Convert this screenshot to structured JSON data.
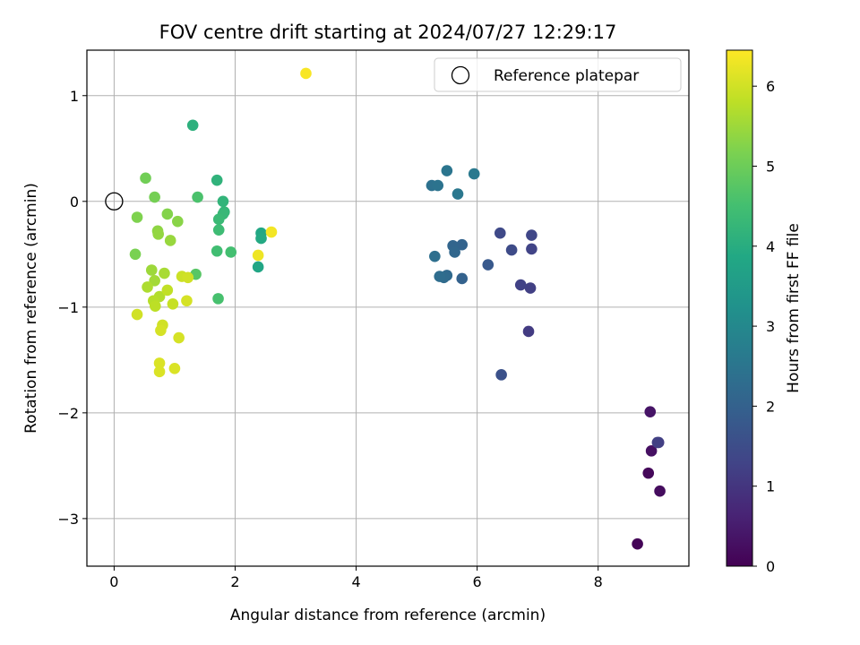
{
  "chart_data": {
    "type": "scatter",
    "title": "FOV centre drift starting at 2024/07/27 12:29:17",
    "xlabel": "Angular distance from reference (arcmin)",
    "ylabel": "Rotation from reference (arcmin)",
    "xlim": [
      -0.45,
      9.5
    ],
    "ylim": [
      -3.45,
      1.43
    ],
    "xticks": [
      0,
      2,
      4,
      6,
      8
    ],
    "yticks": [
      1,
      0,
      -1,
      -2,
      -3
    ],
    "xtick_labels": [
      "0",
      "2",
      "4",
      "6",
      "8"
    ],
    "ytick_labels": [
      "1",
      "0",
      "−1",
      "−2",
      "−3"
    ],
    "grid": true,
    "legend": {
      "placement": "top-right",
      "entries": [
        "Reference platepar"
      ]
    },
    "reference_point": {
      "x": 0,
      "y": 0,
      "marker": "open-circle"
    },
    "colorbar": {
      "label": "Hours from first FF file",
      "range": [
        0,
        6.45
      ],
      "ticks": [
        0,
        1,
        2,
        3,
        4,
        5,
        6
      ],
      "tick_labels": [
        "0",
        "1",
        "2",
        "3",
        "4",
        "5",
        "6"
      ],
      "colormap": "viridis"
    },
    "points": [
      {
        "x": 8.65,
        "y": -3.24,
        "c": 0.05
      },
      {
        "x": 8.83,
        "y": -2.57,
        "c": 0.12
      },
      {
        "x": 9.02,
        "y": -2.74,
        "c": 0.2
      },
      {
        "x": 8.88,
        "y": -2.36,
        "c": 0.28
      },
      {
        "x": 8.86,
        "y": -1.99,
        "c": 0.35
      },
      {
        "x": 9.0,
        "y": -2.28,
        "c": 1.15
      },
      {
        "x": 8.98,
        "y": -2.28,
        "c": 1.2
      },
      {
        "x": 6.85,
        "y": -1.23,
        "c": 1.1
      },
      {
        "x": 6.88,
        "y": -0.82,
        "c": 1.2
      },
      {
        "x": 6.72,
        "y": -0.79,
        "c": 1.25
      },
      {
        "x": 6.9,
        "y": -0.45,
        "c": 1.3
      },
      {
        "x": 6.9,
        "y": -0.32,
        "c": 1.35
      },
      {
        "x": 6.38,
        "y": -0.3,
        "c": 1.4
      },
      {
        "x": 6.57,
        "y": -0.46,
        "c": 1.45
      },
      {
        "x": 6.4,
        "y": -1.64,
        "c": 1.6
      },
      {
        "x": 6.18,
        "y": -0.6,
        "c": 1.8
      },
      {
        "x": 5.75,
        "y": -0.73,
        "c": 2.0
      },
      {
        "x": 5.75,
        "y": -0.41,
        "c": 2.05
      },
      {
        "x": 5.6,
        "y": -0.42,
        "c": 2.1
      },
      {
        "x": 5.63,
        "y": -0.48,
        "c": 2.15
      },
      {
        "x": 5.5,
        "y": -0.7,
        "c": 2.2
      },
      {
        "x": 5.45,
        "y": -0.72,
        "c": 2.25
      },
      {
        "x": 5.38,
        "y": -0.71,
        "c": 2.3
      },
      {
        "x": 5.3,
        "y": -0.52,
        "c": 2.35
      },
      {
        "x": 5.25,
        "y": 0.15,
        "c": 2.4
      },
      {
        "x": 5.35,
        "y": 0.15,
        "c": 2.45
      },
      {
        "x": 5.5,
        "y": 0.29,
        "c": 2.5
      },
      {
        "x": 5.68,
        "y": 0.07,
        "c": 2.55
      },
      {
        "x": 5.95,
        "y": 0.26,
        "c": 2.6
      },
      {
        "x": 2.38,
        "y": -0.62,
        "c": 3.8
      },
      {
        "x": 2.43,
        "y": -0.3,
        "c": 3.85
      },
      {
        "x": 2.43,
        "y": -0.35,
        "c": 3.9
      },
      {
        "x": 1.3,
        "y": 0.72,
        "c": 4.1
      },
      {
        "x": 1.7,
        "y": 0.2,
        "c": 4.15
      },
      {
        "x": 1.8,
        "y": 0.0,
        "c": 4.2
      },
      {
        "x": 1.82,
        "y": -0.1,
        "c": 4.25
      },
      {
        "x": 1.8,
        "y": -0.12,
        "c": 4.3
      },
      {
        "x": 1.73,
        "y": -0.17,
        "c": 4.35
      },
      {
        "x": 1.73,
        "y": -0.27,
        "c": 4.4
      },
      {
        "x": 1.7,
        "y": -0.47,
        "c": 4.45
      },
      {
        "x": 1.93,
        "y": -0.48,
        "c": 4.5
      },
      {
        "x": 1.72,
        "y": -0.92,
        "c": 4.55
      },
      {
        "x": 1.38,
        "y": 0.04,
        "c": 4.6
      },
      {
        "x": 1.35,
        "y": -0.69,
        "c": 4.75
      },
      {
        "x": 0.52,
        "y": 0.22,
        "c": 5.05
      },
      {
        "x": 0.67,
        "y": 0.04,
        "c": 5.1
      },
      {
        "x": 0.35,
        "y": -0.5,
        "c": 5.15
      },
      {
        "x": 0.38,
        "y": -0.15,
        "c": 5.2
      },
      {
        "x": 0.88,
        "y": -0.12,
        "c": 5.25
      },
      {
        "x": 1.05,
        "y": -0.19,
        "c": 5.3
      },
      {
        "x": 0.72,
        "y": -0.28,
        "c": 5.35
      },
      {
        "x": 0.73,
        "y": -0.31,
        "c": 5.4
      },
      {
        "x": 0.93,
        "y": -0.37,
        "c": 5.45
      },
      {
        "x": 0.62,
        "y": -0.65,
        "c": 5.5
      },
      {
        "x": 0.67,
        "y": -0.75,
        "c": 5.55
      },
      {
        "x": 0.83,
        "y": -0.68,
        "c": 5.6
      },
      {
        "x": 0.55,
        "y": -0.81,
        "c": 5.65
      },
      {
        "x": 0.75,
        "y": -0.9,
        "c": 5.7
      },
      {
        "x": 0.65,
        "y": -0.94,
        "c": 5.75
      },
      {
        "x": 0.68,
        "y": -0.99,
        "c": 5.8
      },
      {
        "x": 0.88,
        "y": -0.84,
        "c": 5.85
      },
      {
        "x": 0.97,
        "y": -0.97,
        "c": 5.9
      },
      {
        "x": 1.12,
        "y": -0.71,
        "c": 5.95
      },
      {
        "x": 1.22,
        "y": -0.72,
        "c": 6.0
      },
      {
        "x": 1.2,
        "y": -0.94,
        "c": 6.05
      },
      {
        "x": 0.38,
        "y": -1.07,
        "c": 6.0
      },
      {
        "x": 0.8,
        "y": -1.17,
        "c": 6.0
      },
      {
        "x": 0.77,
        "y": -1.22,
        "c": 6.05
      },
      {
        "x": 1.07,
        "y": -1.29,
        "c": 6.05
      },
      {
        "x": 0.75,
        "y": -1.53,
        "c": 6.1
      },
      {
        "x": 0.75,
        "y": -1.61,
        "c": 6.1
      },
      {
        "x": 1.0,
        "y": -1.58,
        "c": 6.1
      },
      {
        "x": 2.38,
        "y": -0.51,
        "c": 6.3
      },
      {
        "x": 2.6,
        "y": -0.29,
        "c": 6.35
      },
      {
        "x": 3.17,
        "y": 1.21,
        "c": 6.4
      }
    ]
  }
}
